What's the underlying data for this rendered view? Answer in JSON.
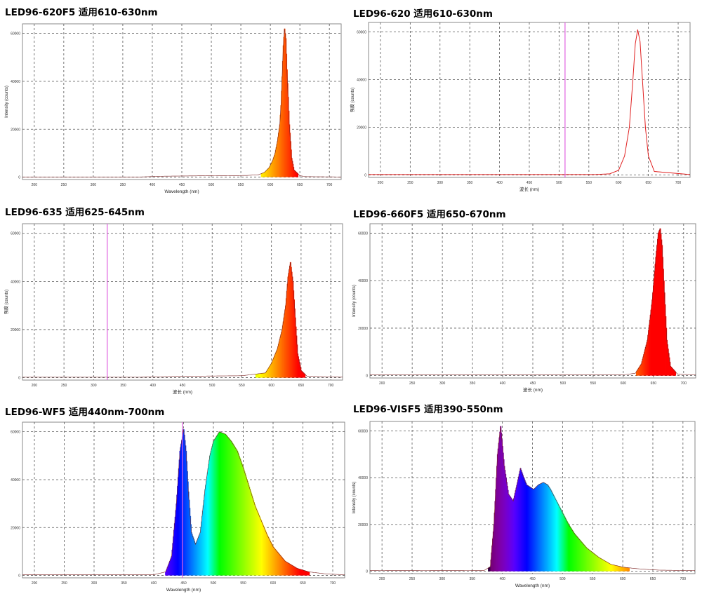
{
  "chart_data": [
    {
      "type": "area",
      "title": "LED96-620F5 适用610-630nm",
      "xlabel": "Wavelength (nm)",
      "ylabel": "Intensity (counts)",
      "xlim": [
        180,
        720
      ],
      "ylim": [
        -1000,
        64000
      ],
      "xticks": [
        200,
        250,
        300,
        350,
        400,
        450,
        500,
        550,
        600,
        650,
        700
      ],
      "yticks": [
        0,
        20000,
        40000,
        60000
      ],
      "grid": true,
      "fill": "spectrum",
      "series": [
        {
          "x": [
            180,
            380,
            420,
            500,
            560,
            580,
            590,
            598,
            604,
            608,
            612,
            616,
            618,
            620,
            622,
            624,
            626,
            628,
            632,
            636,
            640,
            650,
            660,
            720
          ],
          "values": [
            80,
            80,
            400,
            600,
            700,
            1000,
            2000,
            4000,
            7000,
            10000,
            15000,
            22000,
            30000,
            42000,
            55000,
            62000,
            58000,
            45000,
            22000,
            8000,
            3000,
            600,
            200,
            80
          ]
        }
      ]
    },
    {
      "type": "line",
      "title": "LED96-620 适用610-630nm",
      "xlabel": "波长 (nm)",
      "ylabel": "强度 (counts)",
      "xlim": [
        180,
        720
      ],
      "ylim": [
        -1000,
        64000
      ],
      "xticks": [
        200,
        250,
        300,
        350,
        400,
        450,
        500,
        550,
        600,
        650,
        700
      ],
      "yticks": [
        0,
        20000,
        40000,
        60000
      ],
      "grid": true,
      "marker_x": 510,
      "series": [
        {
          "x": [
            180,
            560,
            585,
            600,
            610,
            618,
            624,
            628,
            632,
            636,
            640,
            645,
            650,
            660,
            720
          ],
          "values": [
            200,
            200,
            500,
            2000,
            8000,
            20000,
            40000,
            55000,
            61000,
            56000,
            40000,
            20000,
            8000,
            1500,
            200
          ]
        }
      ]
    },
    {
      "type": "area",
      "title": "LED96-635 适用625-645nm",
      "xlabel": "波长 (nm)",
      "ylabel": "强度 (counts)",
      "xlim": [
        180,
        720
      ],
      "ylim": [
        -1000,
        64000
      ],
      "xticks": [
        200,
        250,
        300,
        350,
        400,
        450,
        500,
        550,
        600,
        650,
        700
      ],
      "yticks": [
        0,
        20000,
        40000,
        60000
      ],
      "grid": true,
      "fill": "spectrum",
      "marker_x": 323,
      "series": [
        {
          "x": [
            180,
            380,
            450,
            550,
            590,
            600,
            610,
            618,
            624,
            628,
            632,
            636,
            640,
            644,
            650,
            660,
            720
          ],
          "values": [
            200,
            200,
            600,
            800,
            2000,
            6000,
            12000,
            20000,
            30000,
            42000,
            48000,
            40000,
            25000,
            10000,
            3000,
            600,
            200
          ]
        }
      ]
    },
    {
      "type": "area",
      "title": "LED96-660F5 适用650-670nm",
      "xlabel": "波长 (nm)",
      "ylabel": "Intensity (counts)",
      "xlim": [
        180,
        720
      ],
      "ylim": [
        -1000,
        64000
      ],
      "xticks": [
        200,
        250,
        300,
        350,
        400,
        450,
        500,
        550,
        600,
        650,
        700
      ],
      "yticks": [
        0,
        20000,
        40000,
        60000
      ],
      "grid": true,
      "fill": "spectrum",
      "series": [
        {
          "x": [
            180,
            600,
            620,
            630,
            640,
            648,
            654,
            658,
            661,
            664,
            668,
            672,
            678,
            690,
            720
          ],
          "values": [
            300,
            300,
            1000,
            5000,
            15000,
            32000,
            50000,
            60000,
            62000,
            55000,
            35000,
            15000,
            4000,
            600,
            300
          ]
        }
      ]
    },
    {
      "type": "area",
      "title": "LED96-WF5 适用440nm-700nm",
      "xlabel": "Wavelength (nm)",
      "ylabel": "",
      "xlim": [
        180,
        720
      ],
      "ylim": [
        -1000,
        64000
      ],
      "xticks": [
        200,
        250,
        300,
        350,
        400,
        450,
        500,
        550,
        600,
        650,
        700
      ],
      "yticks": [
        0,
        20000,
        40000,
        60000
      ],
      "grid": true,
      "fill": "spectrum",
      "marker_x": 448,
      "series": [
        {
          "x": [
            180,
            400,
            420,
            430,
            438,
            444,
            450,
            454,
            458,
            463,
            470,
            478,
            486,
            494,
            500,
            510,
            520,
            530,
            540,
            550,
            560,
            570,
            580,
            590,
            600,
            610,
            620,
            640,
            660,
            690,
            720
          ],
          "values": [
            300,
            300,
            1500,
            8000,
            30000,
            52000,
            61000,
            52000,
            35000,
            18000,
            13000,
            18000,
            36000,
            50000,
            56000,
            60000,
            59000,
            56000,
            52000,
            45000,
            37000,
            29000,
            23000,
            17000,
            12000,
            9000,
            6000,
            3000,
            1500,
            600,
            300
          ]
        }
      ]
    },
    {
      "type": "area",
      "title": "LED96-VISF5 适用390-550nm",
      "xlabel": "Wavelength (nm)",
      "ylabel": "Intensity (counts)",
      "xlim": [
        180,
        720
      ],
      "ylim": [
        -1000,
        64000
      ],
      "xticks": [
        200,
        250,
        300,
        350,
        400,
        450,
        500,
        550,
        600,
        650,
        700
      ],
      "yticks": [
        0,
        20000,
        40000,
        60000
      ],
      "grid": true,
      "fill": "spectrum",
      "series": [
        {
          "x": [
            180,
            370,
            380,
            386,
            392,
            397,
            403,
            410,
            418,
            425,
            430,
            434,
            440,
            446,
            452,
            460,
            468,
            475,
            480,
            490,
            500,
            510,
            520,
            540,
            560,
            580,
            600,
            620,
            640,
            660,
            720
          ],
          "values": [
            300,
            400,
            2000,
            20000,
            50000,
            62000,
            45000,
            33000,
            30000,
            38000,
            44000,
            41000,
            37000,
            36000,
            35000,
            37000,
            38000,
            37000,
            35000,
            30000,
            25000,
            20000,
            16000,
            10000,
            6000,
            3000,
            1800,
            1200,
            800,
            500,
            300
          ]
        }
      ]
    }
  ]
}
